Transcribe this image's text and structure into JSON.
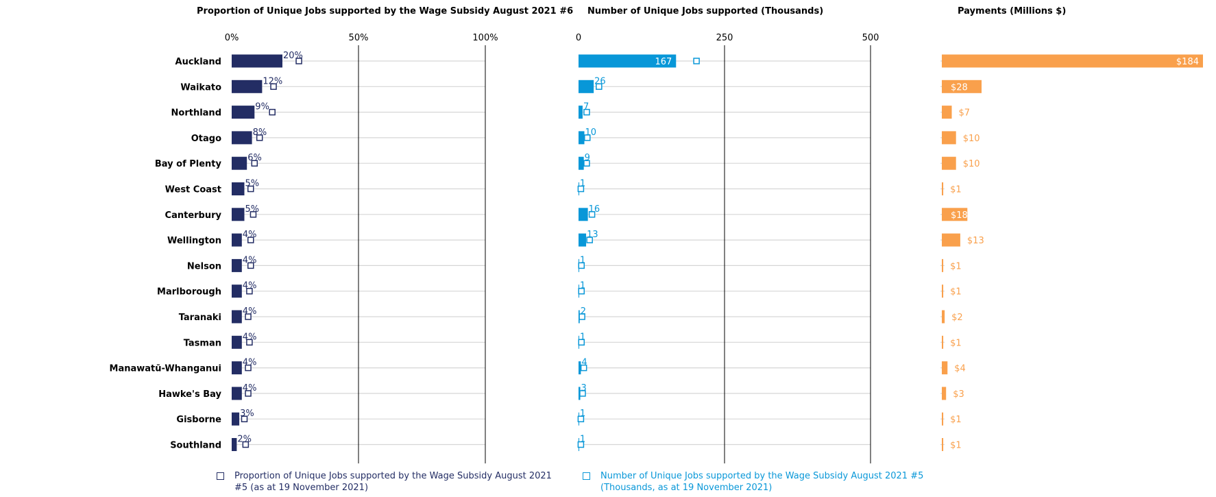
{
  "colors": {
    "proportion": "#232d64",
    "jobs": "#0897d8",
    "payments": "#f9a04c",
    "gridline": "#d6d6d6",
    "axis": "#000000"
  },
  "chart_data": [
    {
      "type": "bar",
      "title": "Proportion of Unique Jobs supported by the  Wage Subsidy August 2021 #6",
      "ticks": [
        "0%",
        "50%",
        "100%"
      ],
      "xlim": [
        0,
        100
      ],
      "categories": [
        "Auckland",
        "Waikato",
        "Northland",
        "Otago",
        "Bay of Plenty",
        "West Coast",
        "Canterbury",
        "Wellington",
        "Nelson",
        "Marlborough",
        "Taranaki",
        "Tasman",
        "Manawatū-Whanganui",
        "Hawke's Bay",
        "Gisborne",
        "Southland"
      ],
      "values": [
        20,
        12,
        9,
        8,
        6,
        5,
        5,
        4,
        4,
        4,
        4,
        4,
        4,
        4,
        3,
        2
      ],
      "labels": [
        "20%",
        "12%",
        "9%",
        "8%",
        "6%",
        "5%",
        "5%",
        "4%",
        "4%",
        "4%",
        "4%",
        "4%",
        "4%",
        "4%",
        "3%",
        "2%"
      ],
      "markers": {
        "name": "Proportion of Unique Jobs supported by the Wage Subsidy August 2021 #5 (as at 19 November 2021)",
        "values": [
          26.5,
          16.5,
          16,
          11,
          9,
          7.5,
          8.5,
          7.5,
          7.5,
          7,
          6.5,
          7,
          6.5,
          6.5,
          5,
          5.5
        ]
      }
    },
    {
      "type": "bar",
      "title": "Number of Unique Jobs supported (Thousands)",
      "ticks": [
        "0",
        "250",
        "500"
      ],
      "xlim": [
        0,
        500
      ],
      "values": [
        167,
        26,
        7,
        10,
        9,
        1,
        16,
        13,
        1,
        1,
        2,
        1,
        4,
        3,
        1,
        1
      ],
      "labels": [
        "167",
        "26",
        "7",
        "10",
        "9",
        "1",
        "16",
        "13",
        "1",
        "1",
        "2",
        "1",
        "4",
        "3",
        "1",
        "1"
      ],
      "markers": {
        "name": "Number of Unique Jobs supported by the Wage Subsidy August 2021 #5 (Thousands, as at 19 November 2021)",
        "values": [
          202,
          35,
          14,
          15,
          14,
          4,
          23,
          19,
          5,
          5,
          6,
          5,
          9,
          7,
          4,
          4
        ]
      }
    },
    {
      "type": "bar",
      "title": "Payments (Millions $)",
      "xlim": [
        0,
        184
      ],
      "values": [
        184,
        28,
        7,
        10,
        10,
        1,
        18,
        13,
        1,
        1,
        2,
        1,
        4,
        3,
        1,
        1
      ],
      "labels": [
        "$184",
        "$28",
        "$7",
        "$10",
        "$10",
        "$1",
        "$18",
        "$13",
        "$1",
        "$1",
        "$2",
        "$1",
        "$4",
        "$3",
        "$1",
        "$1"
      ]
    }
  ],
  "legend": {
    "proportion_text_1": "Proportion of Unique Jobs supported by the Wage Subsidy August 2021",
    "proportion_text_2": "#5 (as at 19 November 2021)",
    "jobs_text_1": "Number of Unique Jobs supported by the Wage Subsidy August 2021 #5",
    "jobs_text_2": "(Thousands, as at 19 November 2021)"
  }
}
